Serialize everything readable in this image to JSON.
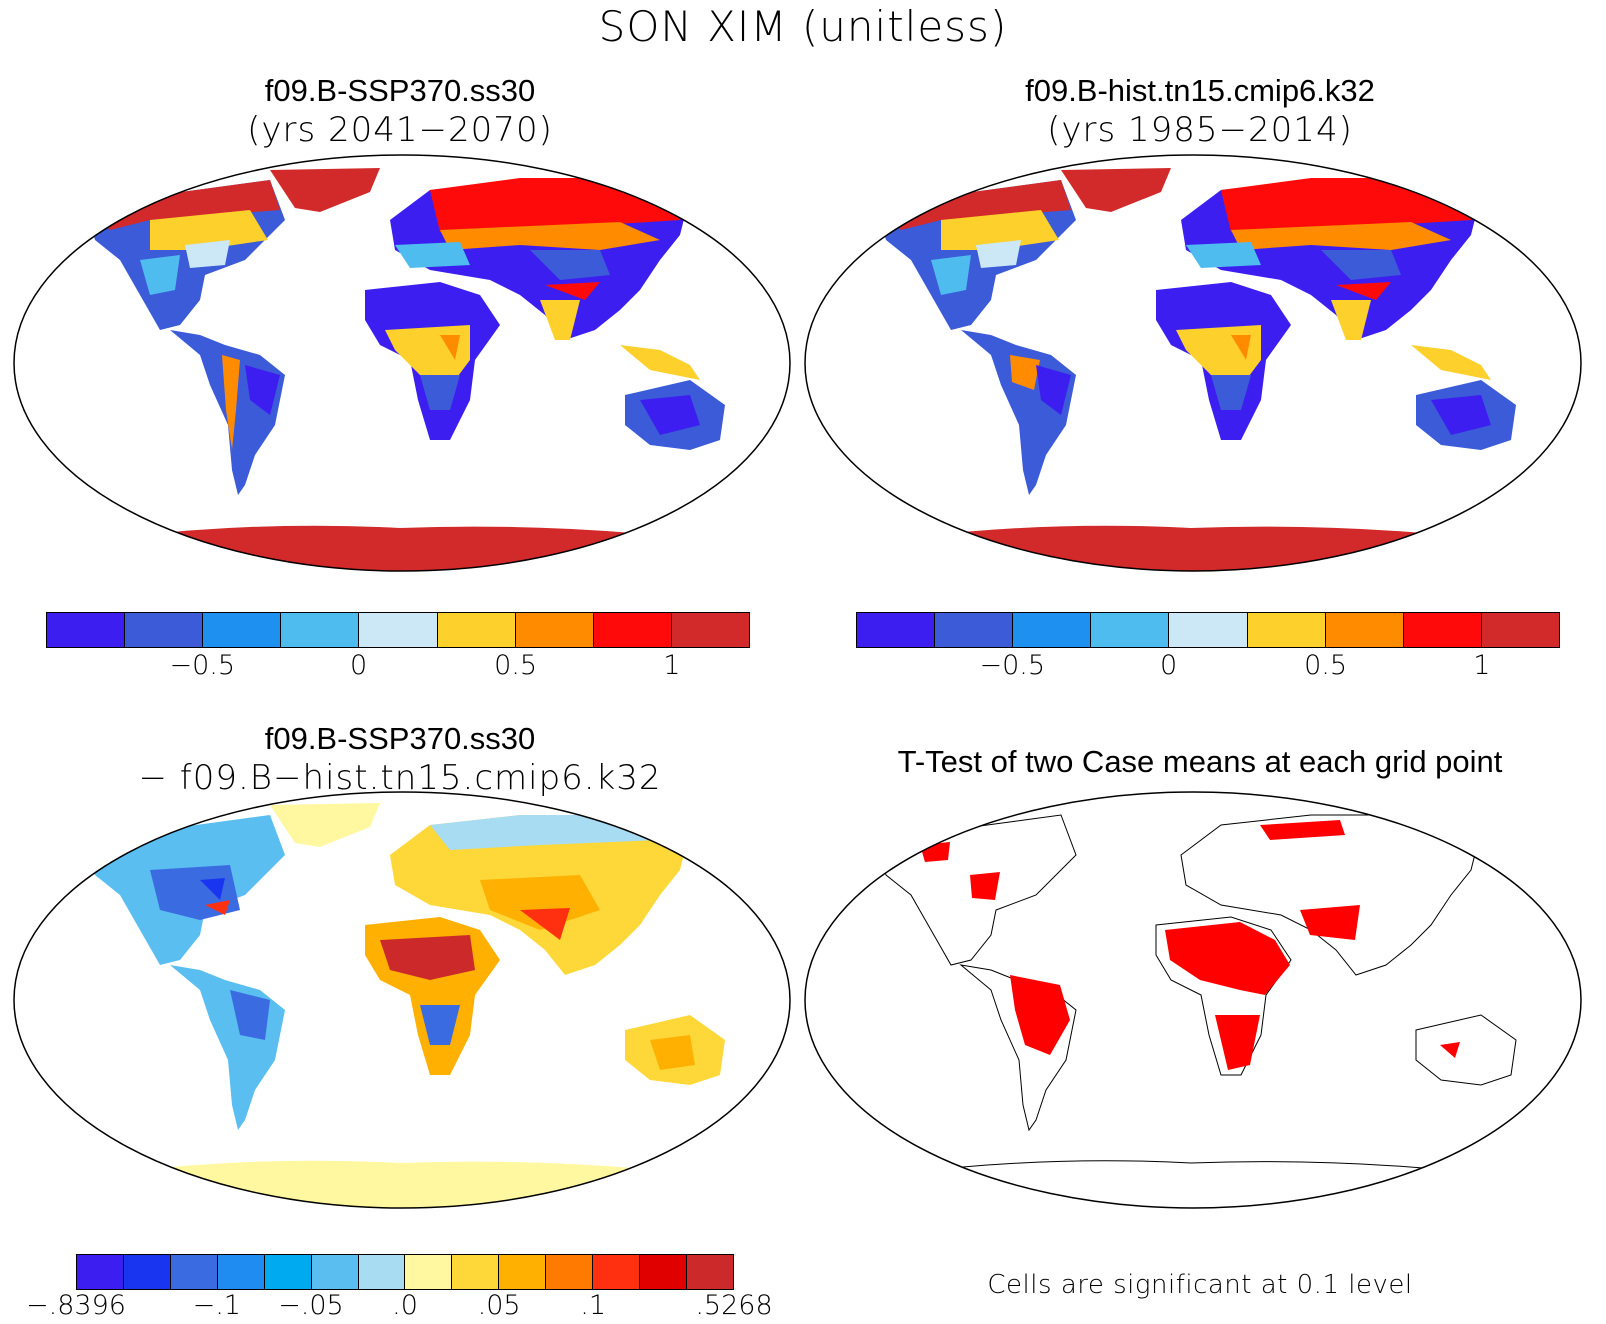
{
  "figure": {
    "title": "SON XIM (unitless)"
  },
  "panels": [
    {
      "title": "f09.B-SSP370.ss30",
      "subtitle": "(yrs 2041−2070)",
      "colorbar": {
        "colors": [
          "#3c1ff0",
          "#3b5bd8",
          "#1e90f0",
          "#4fbcf0",
          "#cce8f6",
          "#fdd02c",
          "#ff8c00",
          "#ff0a0a",
          "#d22a2a"
        ],
        "ticks": [
          "−0.5",
          "0",
          "0.5",
          "1"
        ]
      }
    },
    {
      "title": "f09.B-hist.tn15.cmip6.k32",
      "subtitle": "(yrs 1985−2014)",
      "colorbar": {
        "colors": [
          "#3c1ff0",
          "#3b5bd8",
          "#1e90f0",
          "#4fbcf0",
          "#cce8f6",
          "#fdd02c",
          "#ff8c00",
          "#ff0a0a",
          "#d22a2a"
        ],
        "ticks": [
          "−0.5",
          "0",
          "0.5",
          "1"
        ]
      }
    },
    {
      "title": "f09.B-SSP370.ss30",
      "subtitle": "− f09.B−hist.tn15.cmip6.k32",
      "colorbar": {
        "colors": [
          "#3c1ff0",
          "#1a35f0",
          "#3a6be0",
          "#1e8cf0",
          "#00aaf0",
          "#5abef0",
          "#a8dcf2",
          "#fff8a0",
          "#fdd838",
          "#ffb000",
          "#ff7a00",
          "#ff3010",
          "#e00000",
          "#cc2a2a"
        ],
        "ticks": [
          "−.8396",
          "−.1",
          "−.05",
          ".0",
          ".05",
          ".1",
          ".5268"
        ]
      }
    },
    {
      "title": "T-Test of two Case means at each grid point",
      "note": "Cells are significant at 0.1 level",
      "significance_color": "#ff0000"
    }
  ]
}
